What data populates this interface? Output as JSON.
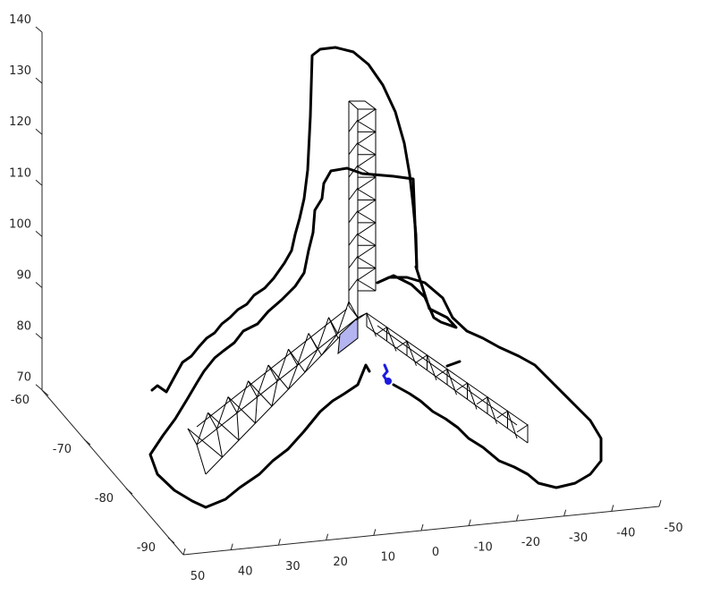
{
  "chart_data": {
    "type": "line",
    "title": "",
    "view": "3d",
    "axes": {
      "z": {
        "ticks": [
          "140",
          "130",
          "120",
          "110",
          "100",
          "90",
          "80",
          "70"
        ],
        "lim": [
          70,
          140
        ]
      },
      "y": {
        "ticks": [
          "-60",
          "-70",
          "-80",
          "-90"
        ],
        "lim": [
          -90,
          -60
        ]
      },
      "x": {
        "ticks": [
          "50",
          "40",
          "30",
          "20",
          "10",
          "0",
          "-10",
          "-20",
          "-30",
          "-40",
          "-50"
        ],
        "lim": [
          -50,
          50
        ]
      }
    },
    "grid": false,
    "legend": "none",
    "series": [
      {
        "style": "truss-structure",
        "color": "#000000"
      },
      {
        "style": "trajectory",
        "color": "#000000"
      },
      {
        "style": "marker-trace",
        "color": "#1a1ae0"
      }
    ],
    "highlight_color": "#b4b4f0"
  }
}
